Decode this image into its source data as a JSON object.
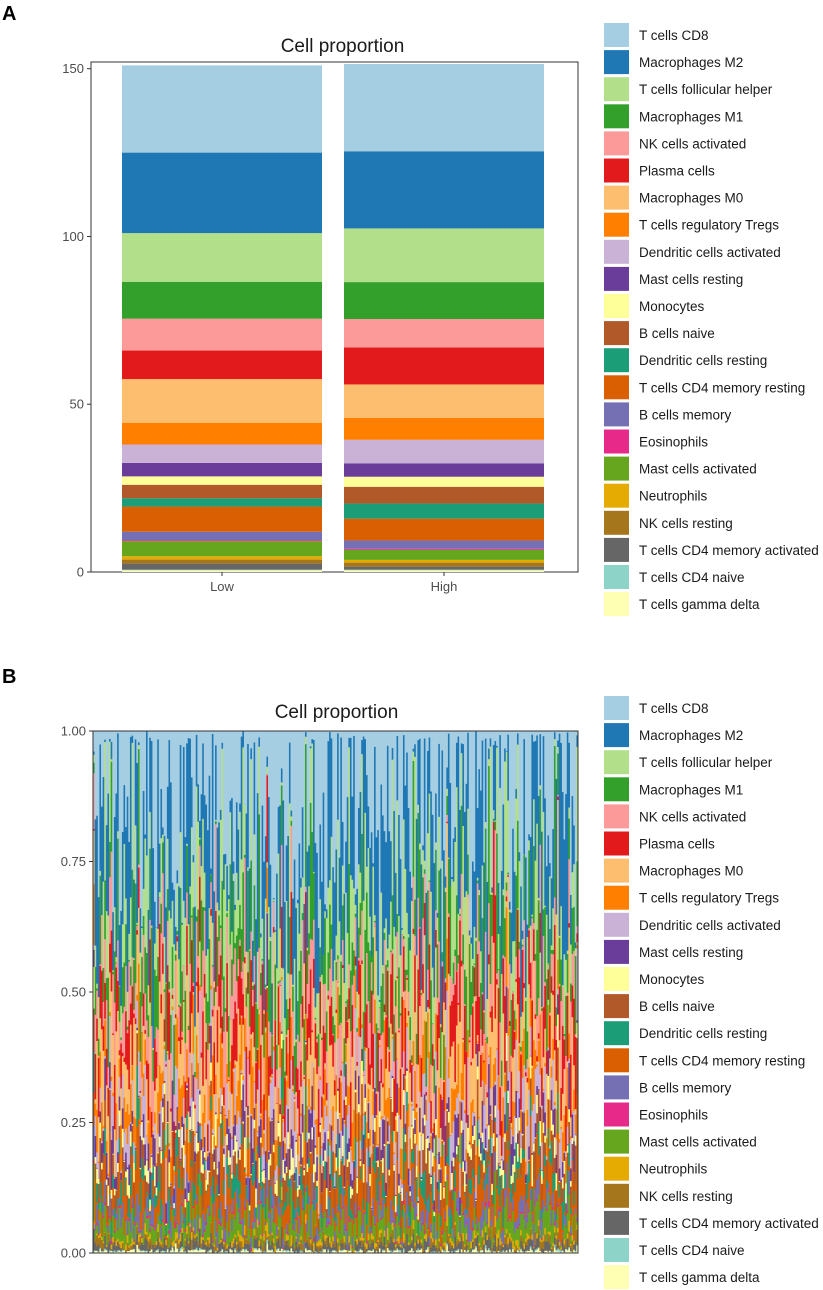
{
  "figure": {
    "panel_a_label": "A",
    "panel_b_label": "B"
  },
  "colors": {
    "T cells CD8": "#a6cee3",
    "Macrophages M2": "#1f78b4",
    "T cells follicular helper": "#b2df8a",
    "Macrophages M1": "#33a02c",
    "NK cells activated": "#fb9a99",
    "Plasma cells": "#e31a1c",
    "Macrophages M0": "#fdbf6f",
    "T cells regulatory  Tregs": "#ff7f00",
    "Dendritic cells activated": "#cab2d6",
    "Mast cells resting": "#6a3d9a",
    "Monocytes": "#ffff99",
    "B cells naive": "#b15928",
    "Dendritic cells resting": "#1b9e77",
    "T cells CD4 memory resting": "#d95f02",
    "B cells memory": "#7570b3",
    "Eosinophils": "#e7298a",
    "Mast cells activated": "#66a61e",
    "Neutrophils": "#e6ab02",
    "NK cells resting": "#a6761d",
    "T cells CD4 memory activated": "#666666",
    "T cells CD4 naive": "#8dd3c7",
    "T cells gamma delta": "#ffffb3"
  },
  "chart_data": [
    {
      "type": "bar",
      "stacked": true,
      "title": "Cell proportion",
      "xlabel": "",
      "ylabel": "",
      "ylim": [
        0,
        152
      ],
      "yticks": [
        0,
        50,
        100,
        150
      ],
      "categories": [
        "Low",
        "High"
      ],
      "legend": "right",
      "series": [
        {
          "name": "T cells CD8",
          "values": [
            26,
            26
          ]
        },
        {
          "name": "Macrophages M2",
          "values": [
            24,
            23
          ]
        },
        {
          "name": "T cells follicular helper",
          "values": [
            14.5,
            16
          ]
        },
        {
          "name": "Macrophages M1",
          "values": [
            11,
            11
          ]
        },
        {
          "name": "NK cells activated",
          "values": [
            9.5,
            8.5
          ]
        },
        {
          "name": "Plasma cells",
          "values": [
            8.5,
            11
          ]
        },
        {
          "name": "Macrophages M0",
          "values": [
            13,
            10
          ]
        },
        {
          "name": "T cells regulatory  Tregs",
          "values": [
            6.5,
            6.5
          ]
        },
        {
          "name": "Dendritic cells activated",
          "values": [
            5.5,
            7
          ]
        },
        {
          "name": "Mast cells resting",
          "values": [
            4,
            4
          ]
        },
        {
          "name": "Monocytes",
          "values": [
            2.5,
            3
          ]
        },
        {
          "name": "B cells naive",
          "values": [
            4,
            5
          ]
        },
        {
          "name": "Dendritic cells resting",
          "values": [
            2.5,
            4.5
          ]
        },
        {
          "name": "T cells CD4 memory resting",
          "values": [
            7.5,
            6.5
          ]
        },
        {
          "name": "B cells memory",
          "values": [
            2.5,
            2.5
          ]
        },
        {
          "name": "Eosinophils",
          "values": [
            0.3,
            0.3
          ]
        },
        {
          "name": "Mast cells activated",
          "values": [
            4.5,
            3
          ]
        },
        {
          "name": "Neutrophils",
          "values": [
            1,
            0.8
          ]
        },
        {
          "name": "NK cells resting",
          "values": [
            1.2,
            1.2
          ]
        },
        {
          "name": "T cells CD4 memory activated",
          "values": [
            1.8,
            0.9
          ]
        },
        {
          "name": "T cells CD4 naive",
          "values": [
            0.2,
            0.2
          ]
        },
        {
          "name": "T cells gamma delta",
          "values": [
            0.5,
            0.5
          ]
        }
      ]
    },
    {
      "type": "bar",
      "stacked": true,
      "title": "Cell proportion",
      "xlabel": "",
      "ylabel": "",
      "ylim": [
        0,
        1
      ],
      "yticks": [
        0.0,
        0.25,
        0.5,
        0.75,
        1.0
      ],
      "ytick_labels": [
        "0.00",
        "0.25",
        "0.50",
        "0.75",
        "1.00"
      ],
      "categories_description": "individual samples (unlabeled)",
      "n_samples": 302,
      "legend": "right",
      "series_order": [
        "T cells CD8",
        "Macrophages M2",
        "T cells follicular helper",
        "Macrophages M1",
        "NK cells activated",
        "Plasma cells",
        "Macrophages M0",
        "T cells regulatory  Tregs",
        "Dendritic cells activated",
        "Mast cells resting",
        "Monocytes",
        "B cells naive",
        "Dendritic cells resting",
        "T cells CD4 memory resting",
        "B cells memory",
        "Eosinophils",
        "Mast cells activated",
        "Neutrophils",
        "NK cells resting",
        "T cells CD4 memory activated",
        "T cells CD4 naive",
        "T cells gamma delta"
      ],
      "mean_proportions": [
        0.17,
        0.15,
        0.1,
        0.073,
        0.058,
        0.064,
        0.075,
        0.043,
        0.041,
        0.026,
        0.018,
        0.029,
        0.023,
        0.046,
        0.017,
        0.002,
        0.025,
        0.006,
        0.008,
        0.009,
        0.0015,
        0.003
      ]
    }
  ],
  "legend_a": [
    "T cells CD8",
    "Macrophages M2",
    "T cells follicular helper",
    "Macrophages M1",
    "NK cells activated",
    "Plasma cells",
    "Macrophages M0",
    "T cells regulatory  Tregs",
    "Dendritic cells activated",
    "Mast cells resting",
    "Monocytes",
    "B cells naive",
    "Dendritic cells resting",
    "T cells CD4 memory resting",
    "B cells memory",
    "Eosinophils",
    "Mast cells activated",
    "Neutrophils",
    "NK cells resting",
    "T cells CD4 memory activated",
    "T cells CD4 naive",
    "T cells gamma delta"
  ],
  "legend_b": [
    "T cells CD8",
    "Macrophages M2",
    "T cells follicular helper",
    "Macrophages M1",
    "NK cells activated",
    "Plasma cells",
    "Macrophages M0",
    "T cells regulatory  Tregs",
    "Dendritic cells activated",
    "Mast cells resting",
    "Monocytes",
    "B cells naive",
    "Dendritic cells resting",
    "T cells CD4 memory resting",
    "B cells memory",
    "Eosinophils",
    "Mast cells activated",
    "Neutrophils",
    "NK cells resting",
    "T cells CD4 memory activated",
    "T cells CD4 naive",
    "T cells gamma delta"
  ]
}
